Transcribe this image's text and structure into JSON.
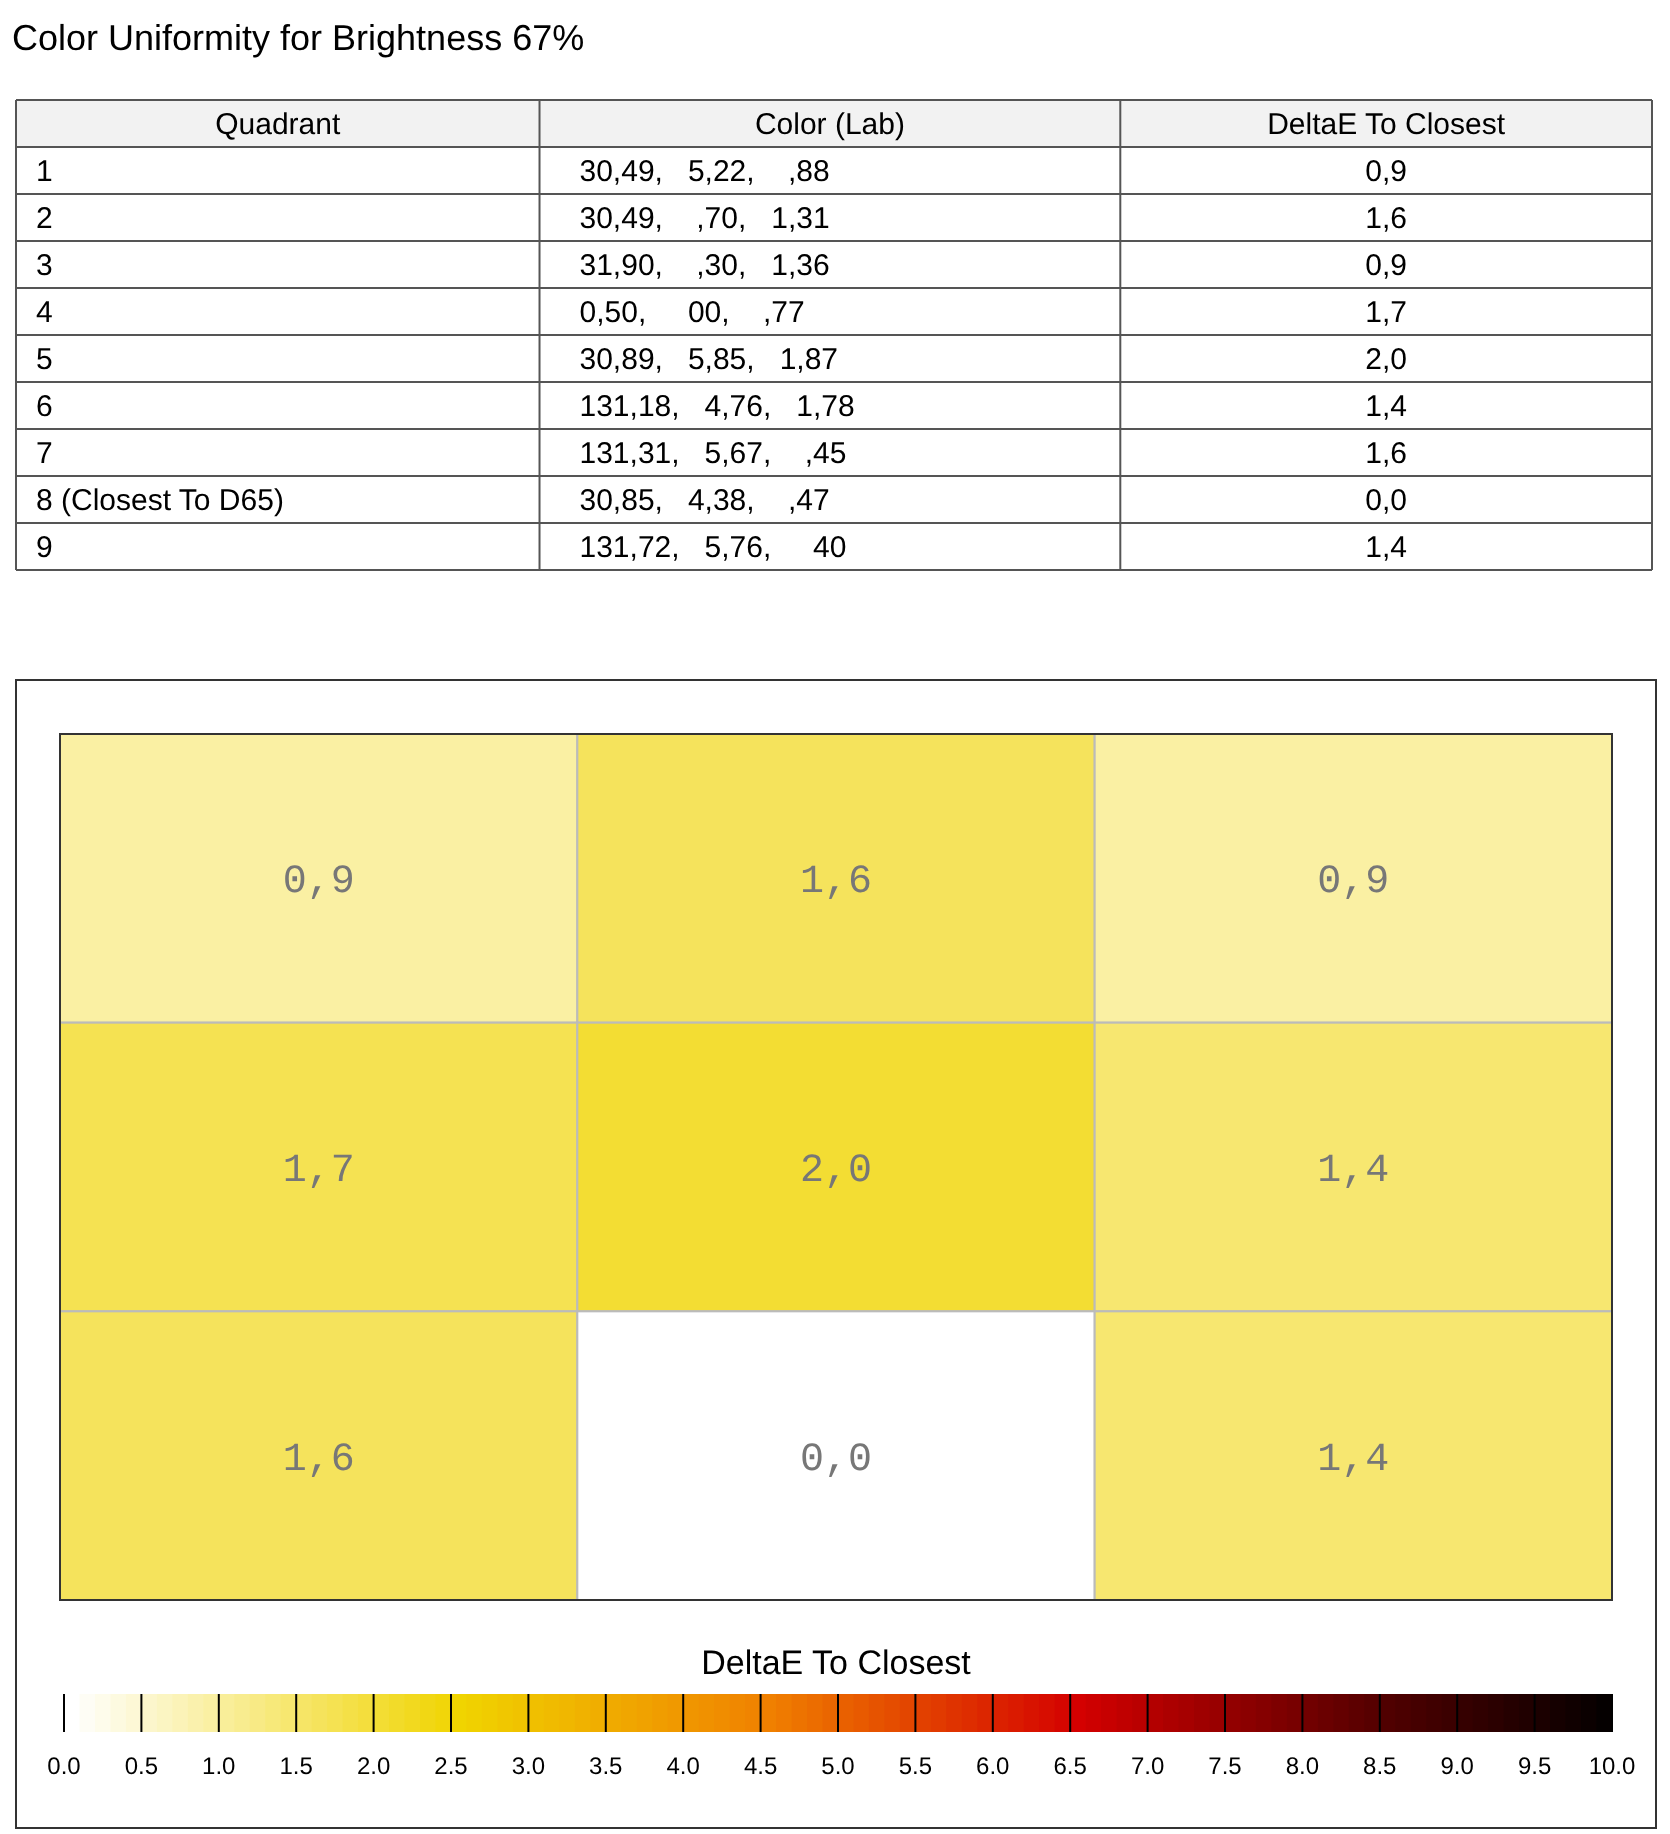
{
  "chart_data": [
    {
      "type": "other",
      "title": "Color Uniformity for Brightness 67%",
      "categories": [
        "Quadrant",
        "Color (Lab)",
        "DeltaE To Closest"
      ],
      "cell_labels": [
        [
          "1",
          "30,49,   5,22,    ,88",
          "0,9"
        ],
        [
          "2",
          "30,49,    ,70,   1,31",
          "1,6"
        ],
        [
          "3",
          "31,90,    ,30,   1,36",
          "0,9"
        ],
        [
          "4",
          "0,50,     00,    ,77",
          "1,7"
        ],
        [
          "5",
          "30,89,   5,85,   1,87",
          "2,0"
        ],
        [
          "6",
          "131,18,   4,76,   1,78",
          "1,4"
        ],
        [
          "7",
          "131,31,   5,67,    ,45",
          "1,6"
        ],
        [
          "8 (Closest To D65)",
          "30,85,   4,38,    ,47",
          "0,0"
        ],
        [
          "9",
          "131,72,   5,76,     40",
          "1,4"
        ]
      ]
    },
    {
      "type": "heatmap",
      "categories": [
        null,
        null,
        null
      ],
      "y_categories": [
        null,
        null,
        null
      ],
      "cells": [
        [
          0.9,
          1.6,
          0.9
        ],
        [
          1.7,
          2.0,
          1.4
        ],
        [
          1.6,
          0.0,
          1.4
        ]
      ],
      "cell_labels": [
        [
          "0,9",
          "1,6",
          "0,9"
        ],
        [
          "1,7",
          "2,0",
          "1,4"
        ],
        [
          "1,6",
          "0,0",
          "1,4"
        ]
      ],
      "clabel": "DeltaE To Closest",
      "clim": [
        0,
        10
      ],
      "cticks": [
        {
          "value": 0,
          "label": "0.0"
        },
        {
          "value": 0.5,
          "label": "0.5"
        },
        {
          "value": 1,
          "label": "1.0"
        },
        {
          "value": 1.5,
          "label": "1.5"
        },
        {
          "value": 2,
          "label": "2.0"
        },
        {
          "value": 2.5,
          "label": "2.5"
        },
        {
          "value": 3,
          "label": "3.0"
        },
        {
          "value": 3.5,
          "label": "3.5"
        },
        {
          "value": 4,
          "label": "4.0"
        },
        {
          "value": 4.5,
          "label": "4.5"
        },
        {
          "value": 5,
          "label": "5.0"
        },
        {
          "value": 5.5,
          "label": "5.5"
        },
        {
          "value": 6,
          "label": "6.0"
        },
        {
          "value": 6.5,
          "label": "6.5"
        },
        {
          "value": 7,
          "label": "7.0"
        },
        {
          "value": 7.5,
          "label": "7.5"
        },
        {
          "value": 8,
          "label": "8.0"
        },
        {
          "value": 8.5,
          "label": "8.5"
        },
        {
          "value": 9,
          "label": "9.0"
        },
        {
          "value": 9.5,
          "label": "9.5"
        },
        {
          "value": 10,
          "label": "10.0"
        }
      ]
    }
  ]
}
